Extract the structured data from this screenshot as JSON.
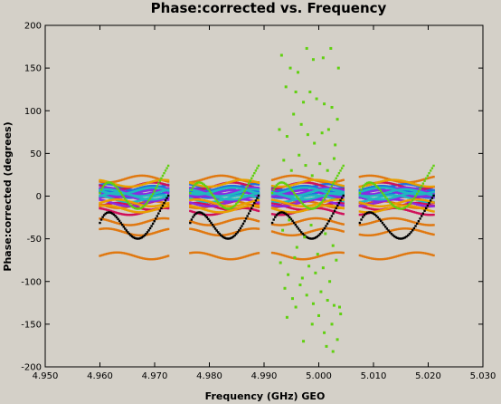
{
  "chart_data": {
    "type": "scatter",
    "title": "Phase:corrected vs. Frequency",
    "xlabel": "Frequency (GHz) GEO",
    "ylabel": "Phase:corrected (degrees)",
    "xlim": [
      4.95,
      5.03
    ],
    "ylim": [
      -200,
      200
    ],
    "xticks": [
      "4.950",
      "4.960",
      "4.970",
      "4.980",
      "4.990",
      "5.000",
      "5.010",
      "5.020",
      "5.030"
    ],
    "yticks": [
      "-200",
      "-150",
      "-100",
      "-50",
      "0",
      "50",
      "100",
      "150",
      "200"
    ],
    "grid": false,
    "legend": "none",
    "spws": [
      {
        "x_range": [
          4.96,
          4.9725
        ]
      },
      {
        "x_range": [
          4.9765,
          4.989
        ]
      },
      {
        "x_range": [
          4.9915,
          5.0045
        ]
      },
      {
        "x_range": [
          5.0075,
          5.021
        ]
      }
    ],
    "series": [
      {
        "color": "#e07810",
        "offsets": [
          -70,
          -42,
          -30,
          -10,
          20
        ]
      },
      {
        "color": "#1f6fe0",
        "offsets": [
          5,
          10,
          2,
          8
        ]
      },
      {
        "color": "#d0105a",
        "offsets": [
          -12,
          -5,
          -18,
          12
        ]
      },
      {
        "color": "#8a2be2",
        "offsets": [
          -2,
          6,
          -8,
          3
        ]
      },
      {
        "color": "#20b8c0",
        "offsets": [
          0,
          4,
          -3,
          6
        ]
      },
      {
        "color": "#e8a000",
        "offsets": [
          -8,
          -15,
          15
        ]
      },
      {
        "color": "#000000",
        "offsets": [
          -30
        ]
      },
      {
        "color": "#60d010",
        "offsets": [
          5
        ]
      }
    ],
    "scatter_points": [
      [
        4.9932,
        165
      ],
      [
        4.9948,
        150
      ],
      [
        4.9962,
        145
      ],
      [
        4.9978,
        173
      ],
      [
        4.999,
        160
      ],
      [
        5.0008,
        162
      ],
      [
        5.0022,
        173
      ],
      [
        5.0036,
        150
      ],
      [
        4.994,
        128
      ],
      [
        4.9958,
        122
      ],
      [
        4.9972,
        110
      ],
      [
        4.9984,
        122
      ],
      [
        4.9996,
        114
      ],
      [
        5.001,
        108
      ],
      [
        5.0024,
        104
      ],
      [
        5.0034,
        90
      ],
      [
        4.9928,
        78
      ],
      [
        4.9942,
        70
      ],
      [
        4.9954,
        96
      ],
      [
        4.9968,
        84
      ],
      [
        4.998,
        72
      ],
      [
        4.9992,
        62
      ],
      [
        5.0006,
        74
      ],
      [
        5.0018,
        78
      ],
      [
        5.003,
        60
      ],
      [
        4.9936,
        42
      ],
      [
        4.995,
        30
      ],
      [
        4.9964,
        48
      ],
      [
        4.9976,
        36
      ],
      [
        4.9988,
        24
      ],
      [
        5.0002,
        38
      ],
      [
        5.0016,
        30
      ],
      [
        5.0028,
        44
      ],
      [
        4.9934,
        -40
      ],
      [
        4.9946,
        -28
      ],
      [
        4.996,
        -60
      ],
      [
        4.9974,
        -48
      ],
      [
        4.9986,
        -34
      ],
      [
        4.9998,
        -68
      ],
      [
        5.0012,
        -44
      ],
      [
        5.0026,
        -58
      ],
      [
        4.993,
        -78
      ],
      [
        4.9944,
        -92
      ],
      [
        4.9956,
        -72
      ],
      [
        4.997,
        -96
      ],
      [
        4.9982,
        -82
      ],
      [
        4.9994,
        -90
      ],
      [
        5.0008,
        -84
      ],
      [
        5.002,
        -100
      ],
      [
        5.0032,
        -75
      ],
      [
        4.9938,
        -108
      ],
      [
        4.9952,
        -120
      ],
      [
        4.9966,
        -104
      ],
      [
        4.9978,
        -116
      ],
      [
        4.999,
        -126
      ],
      [
        5.0004,
        -112
      ],
      [
        5.0016,
        -122
      ],
      [
        5.0028,
        -128
      ],
      [
        5.004,
        -138
      ],
      [
        4.9942,
        -142
      ],
      [
        4.9958,
        -130
      ],
      [
        4.9972,
        -170
      ],
      [
        4.9988,
        -150
      ],
      [
        5.0,
        -140
      ],
      [
        5.0014,
        -176
      ],
      [
        5.0024,
        -150
      ],
      [
        5.0034,
        -168
      ],
      [
        5.0026,
        -182
      ],
      [
        5.001,
        -160
      ],
      [
        5.0038,
        -130
      ]
    ]
  }
}
